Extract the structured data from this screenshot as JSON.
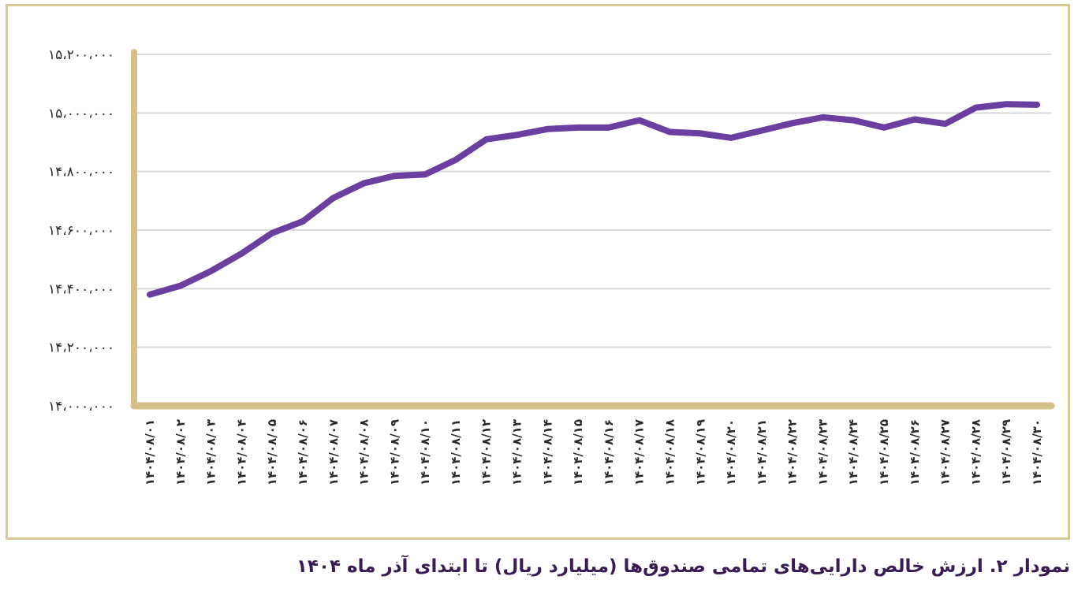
{
  "chart_data": {
    "type": "line",
    "title": "نمودار ۲. ارزش خالص دارایی‌های تمامی صندوق‌ها (میلیارد ریال) تا ابتدای آذر ماه ۱۴۰۴",
    "xlabel": "",
    "ylabel": "",
    "ylim": [
      14000000,
      15200000
    ],
    "yticks": [
      {
        "value": 14000000,
        "label": "۱۴،۰۰۰،۰۰۰"
      },
      {
        "value": 14200000,
        "label": "۱۴،۲۰۰،۰۰۰"
      },
      {
        "value": 14400000,
        "label": "۱۴،۴۰۰،۰۰۰"
      },
      {
        "value": 14600000,
        "label": "۱۴،۶۰۰،۰۰۰"
      },
      {
        "value": 14800000,
        "label": "۱۴،۸۰۰،۰۰۰"
      },
      {
        "value": 15000000,
        "label": "۱۵،۰۰۰،۰۰۰"
      },
      {
        "value": 15200000,
        "label": "۱۵،۲۰۰،۰۰۰"
      }
    ],
    "grid": true,
    "categories": [
      "۱۴۰۴/۰۸/۰۱",
      "۱۴۰۴/۰۸/۰۲",
      "۱۴۰۴/۰۸/۰۳",
      "۱۴۰۴/۰۸/۰۴",
      "۱۴۰۴/۰۸/۰۵",
      "۱۴۰۴/۰۸/۰۶",
      "۱۴۰۴/۰۸/۰۷",
      "۱۴۰۴/۰۸/۰۸",
      "۱۴۰۴/۰۸/۰۹",
      "۱۴۰۴/۰۸/۱۰",
      "۱۴۰۴/۰۸/۱۱",
      "۱۴۰۴/۰۸/۱۲",
      "۱۴۰۴/۰۸/۱۳",
      "۱۴۰۴/۰۸/۱۴",
      "۱۴۰۴/۰۸/۱۵",
      "۱۴۰۴/۰۸/۱۶",
      "۱۴۰۴/۰۸/۱۷",
      "۱۴۰۴/۰۸/۱۸",
      "۱۴۰۴/۰۸/۱۹",
      "۱۴۰۴/۰۸/۲۰",
      "۱۴۰۴/۰۸/۲۱",
      "۱۴۰۴/۰۸/۲۲",
      "۱۴۰۴/۰۸/۲۳",
      "۱۴۰۴/۰۸/۲۴",
      "۱۴۰۴/۰۸/۲۵",
      "۱۴۰۴/۰۸/۲۶",
      "۱۴۰۴/۰۸/۲۷",
      "۱۴۰۴/۰۸/۲۸",
      "۱۴۰۴/۰۸/۲۹",
      "۱۴۰۴/۰۸/۳۰"
    ],
    "series": [
      {
        "values": [
          14380000,
          14410000,
          14460000,
          14520000,
          14590000,
          14630000,
          14710000,
          14760000,
          14785000,
          14790000,
          14840000,
          14910000,
          14925000,
          14945000,
          14950000,
          14950000,
          14975000,
          14935000,
          14930000,
          14915000,
          14940000,
          14965000,
          14985000,
          14975000,
          14950000,
          14978000,
          14963000,
          15018000,
          15030000,
          15028000
        ]
      }
    ],
    "colors": {
      "line": "#6b3fa0",
      "axis": "#d4c088",
      "grid": "#d9d9d9",
      "frame": "#d8c894",
      "text": "#2a2a2a",
      "caption": "#3a1c54"
    }
  }
}
